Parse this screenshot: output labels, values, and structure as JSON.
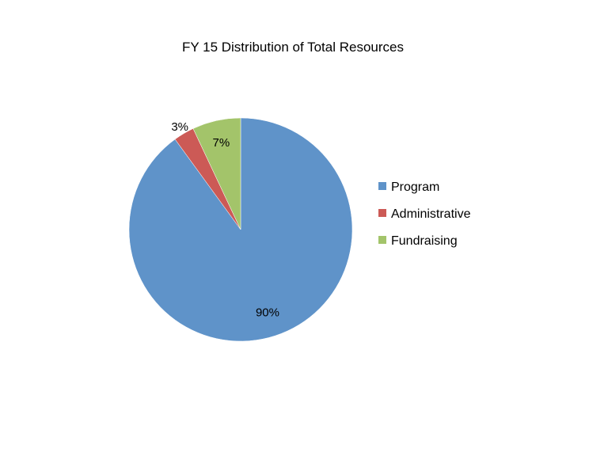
{
  "chart_data": {
    "type": "pie",
    "title": "FY 15 Distribution of Total Resources",
    "categories": [
      "Program",
      "Administrative",
      "Fundraising"
    ],
    "values": [
      90,
      3,
      7
    ],
    "data_labels": [
      "90%",
      "3%",
      "7%"
    ],
    "unit": "%",
    "colors": [
      "#5f93c9",
      "#cc5a56",
      "#a3c46a"
    ],
    "legend_position": "right",
    "start_angle": "12 o'clock",
    "direction": "clockwise"
  }
}
